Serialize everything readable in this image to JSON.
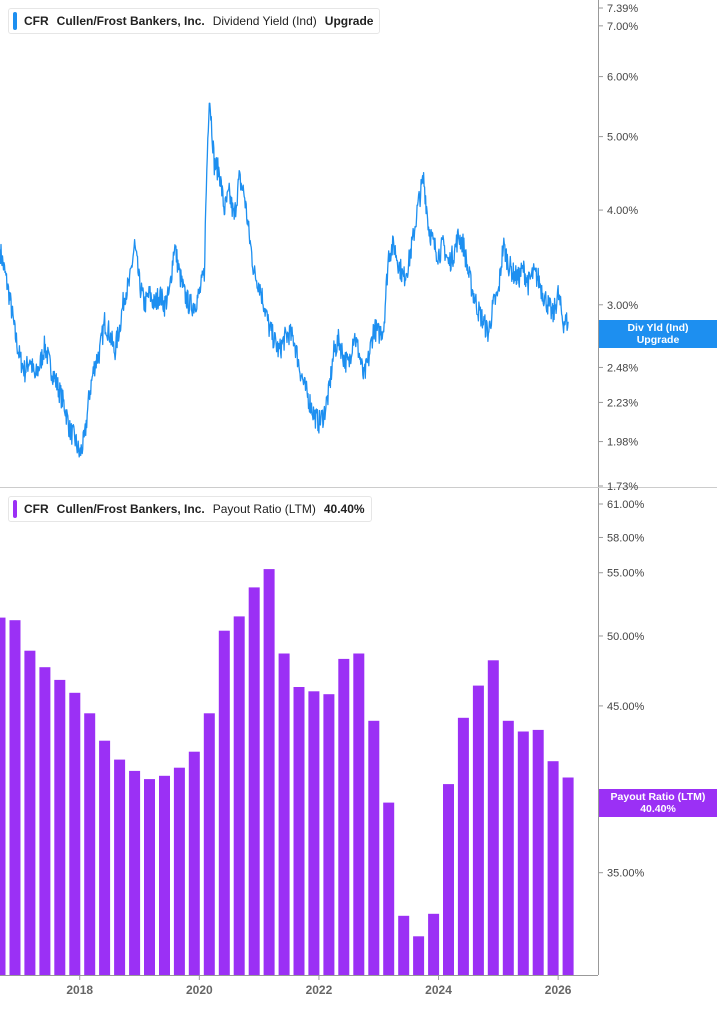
{
  "colors": {
    "yield_line": "#1d8ff0",
    "payout_bar": "#9b30f5",
    "axis": "#999999",
    "tick_text": "#444444"
  },
  "top_panel": {
    "legend": {
      "ticker": "CFR",
      "company": "Cullen/Frost Bankers, Inc.",
      "metric": "Dividend Yield (Ind)",
      "value": "Upgrade"
    },
    "tag": {
      "line1": "Div Yld (Ind)",
      "line2": "Upgrade"
    },
    "y_ticks": [
      "7.39%",
      "7.00%",
      "6.00%",
      "5.00%",
      "4.00%",
      "3.00%",
      "2.48%",
      "2.23%",
      "1.98%",
      "1.73%"
    ]
  },
  "bottom_panel": {
    "legend": {
      "ticker": "CFR",
      "company": "Cullen/Frost Bankers, Inc.",
      "metric": "Payout Ratio (LTM)",
      "value": "40.40%"
    },
    "tag": {
      "line1": "Payout Ratio (LTM)",
      "line2": "40.40%"
    },
    "y_ticks": [
      "61.00%",
      "58.00%",
      "55.00%",
      "50.00%",
      "45.00%",
      "35.00%"
    ]
  },
  "x_ticks": [
    "2018",
    "2020",
    "2022",
    "2024",
    "2026"
  ],
  "chart_data": [
    {
      "type": "line",
      "series": [
        {
          "name": "Dividend Yield (Ind)",
          "points": [
            [
              "2016-09",
              3.55
            ],
            [
              "2016-10",
              3.3
            ],
            [
              "2016-11",
              3.05
            ],
            [
              "2016-12",
              2.75
            ],
            [
              "2017-01",
              2.55
            ],
            [
              "2017-02",
              2.45
            ],
            [
              "2017-03",
              2.55
            ],
            [
              "2017-04",
              2.4
            ],
            [
              "2017-05",
              2.5
            ],
            [
              "2017-06",
              2.65
            ],
            [
              "2017-07",
              2.5
            ],
            [
              "2017-08",
              2.4
            ],
            [
              "2017-09",
              2.3
            ],
            [
              "2017-10",
              2.2
            ],
            [
              "2017-11",
              2.05
            ],
            [
              "2017-12",
              2.0
            ],
            [
              "2018-01",
              1.9
            ],
            [
              "2018-02",
              2.0
            ],
            [
              "2018-03",
              2.3
            ],
            [
              "2018-04",
              2.5
            ],
            [
              "2018-05",
              2.6
            ],
            [
              "2018-06",
              2.85
            ],
            [
              "2018-07",
              2.75
            ],
            [
              "2018-08",
              2.6
            ],
            [
              "2018-09",
              2.8
            ],
            [
              "2018-10",
              3.1
            ],
            [
              "2018-11",
              3.2
            ],
            [
              "2018-12",
              3.6
            ],
            [
              "2019-01",
              3.2
            ],
            [
              "2019-02",
              3.0
            ],
            [
              "2019-03",
              3.1
            ],
            [
              "2019-04",
              3.0
            ],
            [
              "2019-05",
              3.1
            ],
            [
              "2019-06",
              3.0
            ],
            [
              "2019-07",
              3.1
            ],
            [
              "2019-08",
              3.6
            ],
            [
              "2019-09",
              3.3
            ],
            [
              "2019-10",
              3.1
            ],
            [
              "2019-11",
              3.0
            ],
            [
              "2019-12",
              3.0
            ],
            [
              "2020-01",
              3.1
            ],
            [
              "2020-02",
              3.3
            ],
            [
              "2020-03",
              5.7
            ],
            [
              "2020-04",
              4.6
            ],
            [
              "2020-05",
              4.5
            ],
            [
              "2020-06",
              4.0
            ],
            [
              "2020-07",
              4.2
            ],
            [
              "2020-08",
              3.9
            ],
            [
              "2020-09",
              4.4
            ],
            [
              "2020-10",
              4.2
            ],
            [
              "2020-11",
              3.7
            ],
            [
              "2020-12",
              3.3
            ],
            [
              "2021-01",
              3.2
            ],
            [
              "2021-02",
              3.0
            ],
            [
              "2021-03",
              2.8
            ],
            [
              "2021-04",
              2.7
            ],
            [
              "2021-05",
              2.6
            ],
            [
              "2021-06",
              2.7
            ],
            [
              "2021-07",
              2.75
            ],
            [
              "2021-08",
              2.7
            ],
            [
              "2021-09",
              2.5
            ],
            [
              "2021-10",
              2.35
            ],
            [
              "2021-11",
              2.25
            ],
            [
              "2021-12",
              2.15
            ],
            [
              "2022-01",
              2.1
            ],
            [
              "2022-02",
              2.15
            ],
            [
              "2022-03",
              2.3
            ],
            [
              "2022-04",
              2.6
            ],
            [
              "2022-05",
              2.7
            ],
            [
              "2022-06",
              2.55
            ],
            [
              "2022-07",
              2.5
            ],
            [
              "2022-08",
              2.75
            ],
            [
              "2022-09",
              2.6
            ],
            [
              "2022-10",
              2.4
            ],
            [
              "2022-11",
              2.55
            ],
            [
              "2022-12",
              2.8
            ],
            [
              "2023-01",
              2.75
            ],
            [
              "2023-02",
              2.8
            ],
            [
              "2023-03",
              3.5
            ],
            [
              "2023-04",
              3.6
            ],
            [
              "2023-05",
              3.4
            ],
            [
              "2023-06",
              3.25
            ],
            [
              "2023-07",
              3.4
            ],
            [
              "2023-08",
              3.7
            ],
            [
              "2023-09",
              4.1
            ],
            [
              "2023-10",
              4.4
            ],
            [
              "2023-11",
              3.8
            ],
            [
              "2023-12",
              3.6
            ],
            [
              "2024-01",
              3.5
            ],
            [
              "2024-02",
              3.6
            ],
            [
              "2024-03",
              3.4
            ],
            [
              "2024-04",
              3.5
            ],
            [
              "2024-05",
              3.7
            ],
            [
              "2024-06",
              3.6
            ],
            [
              "2024-07",
              3.3
            ],
            [
              "2024-08",
              3.1
            ],
            [
              "2024-09",
              2.95
            ],
            [
              "2024-10",
              2.85
            ],
            [
              "2024-11",
              2.75
            ],
            [
              "2024-12",
              3.0
            ],
            [
              "2025-01",
              3.1
            ],
            [
              "2025-02",
              3.6
            ],
            [
              "2025-03",
              3.4
            ],
            [
              "2025-04",
              3.3
            ],
            [
              "2025-05",
              3.25
            ],
            [
              "2025-06",
              3.35
            ],
            [
              "2025-07",
              3.2
            ],
            [
              "2025-08",
              3.3
            ],
            [
              "2025-09",
              3.25
            ],
            [
              "2025-10",
              3.1
            ],
            [
              "2025-11",
              3.0
            ],
            [
              "2025-12",
              2.9
            ],
            [
              "2026-01",
              3.1
            ],
            [
              "2026-02",
              2.85
            ],
            [
              "2026-03",
              2.85
            ]
          ]
        }
      ],
      "y_scale": "log",
      "ylim": [
        1.73,
        7.39
      ],
      "xlim": [
        "2016-09",
        "2026-09"
      ],
      "grid": false,
      "legend_position": "top-left"
    },
    {
      "type": "bar",
      "series": [
        {
          "name": "Payout Ratio (LTM)",
          "points": [
            [
              "2016-09",
              51.4
            ],
            [
              "2016-12",
              51.2
            ],
            [
              "2017-03",
              48.9
            ],
            [
              "2017-06",
              47.7
            ],
            [
              "2017-09",
              46.8
            ],
            [
              "2017-12",
              45.9
            ],
            [
              "2018-03",
              44.5
            ],
            [
              "2018-06",
              42.7
            ],
            [
              "2018-09",
              41.5
            ],
            [
              "2018-12",
              40.8
            ],
            [
              "2019-03",
              40.3
            ],
            [
              "2019-06",
              40.5
            ],
            [
              "2019-09",
              41.0
            ],
            [
              "2019-12",
              42.0
            ],
            [
              "2020-03",
              44.5
            ],
            [
              "2020-06",
              50.4
            ],
            [
              "2020-09",
              51.5
            ],
            [
              "2020-12",
              53.8
            ],
            [
              "2021-03",
              55.3
            ],
            [
              "2021-06",
              48.7
            ],
            [
              "2021-09",
              46.3
            ],
            [
              "2021-12",
              46.0
            ],
            [
              "2022-03",
              45.8
            ],
            [
              "2022-06",
              48.3
            ],
            [
              "2022-09",
              48.7
            ],
            [
              "2022-12",
              44.0
            ],
            [
              "2023-03",
              38.9
            ],
            [
              "2023-06",
              32.8
            ],
            [
              "2023-09",
              31.8
            ],
            [
              "2023-12",
              32.9
            ],
            [
              "2024-03",
              40.0
            ],
            [
              "2024-06",
              44.2
            ],
            [
              "2024-09",
              46.4
            ],
            [
              "2024-12",
              48.2
            ],
            [
              "2025-03",
              44.0
            ],
            [
              "2025-06",
              43.3
            ],
            [
              "2025-09",
              43.4
            ],
            [
              "2025-12",
              41.4
            ],
            [
              "2026-03",
              40.4
            ]
          ]
        }
      ],
      "y_scale": "log",
      "ylim": [
        30.0,
        61.0
      ],
      "xlim": [
        "2016-09",
        "2026-09"
      ],
      "grid": false,
      "legend_position": "top-left"
    }
  ]
}
